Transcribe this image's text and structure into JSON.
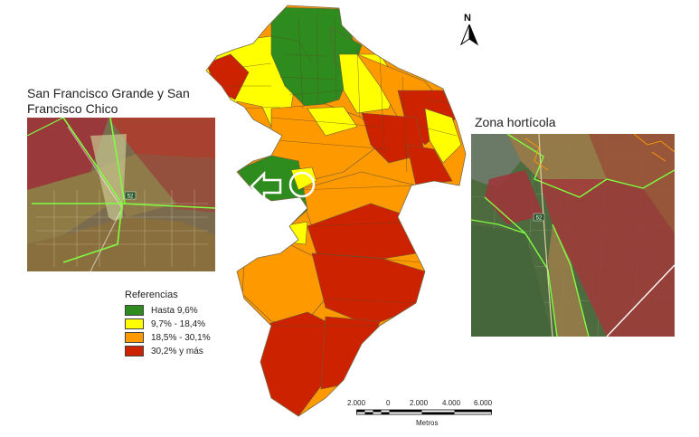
{
  "insets": {
    "left_title": "San Francisco Grande y San Francisco Chico",
    "right_title": "Zona hortícola",
    "road_label": "52"
  },
  "legend": {
    "title": "Referencias",
    "items": [
      {
        "label": "Hasta 9,6%",
        "color": "#2e8b1e"
      },
      {
        "label": "9,7% - 18,4%",
        "color": "#ffff00"
      },
      {
        "label": "18,5% - 30,1%",
        "color": "#ff9900"
      },
      {
        "label": "30,2% y más",
        "color": "#cc2200"
      }
    ]
  },
  "north_arrow": {
    "label": "N",
    "icon": "north-arrow-icon"
  },
  "scale": {
    "ticks": [
      "2.000",
      "0",
      "2.000",
      "4.000",
      "6.000"
    ],
    "unit": "Metros"
  },
  "colors": {
    "green": "#2e8b1e",
    "yellow": "#ffff00",
    "orange": "#ff9900",
    "red": "#cc2200",
    "boundary": "#7fff3f"
  }
}
